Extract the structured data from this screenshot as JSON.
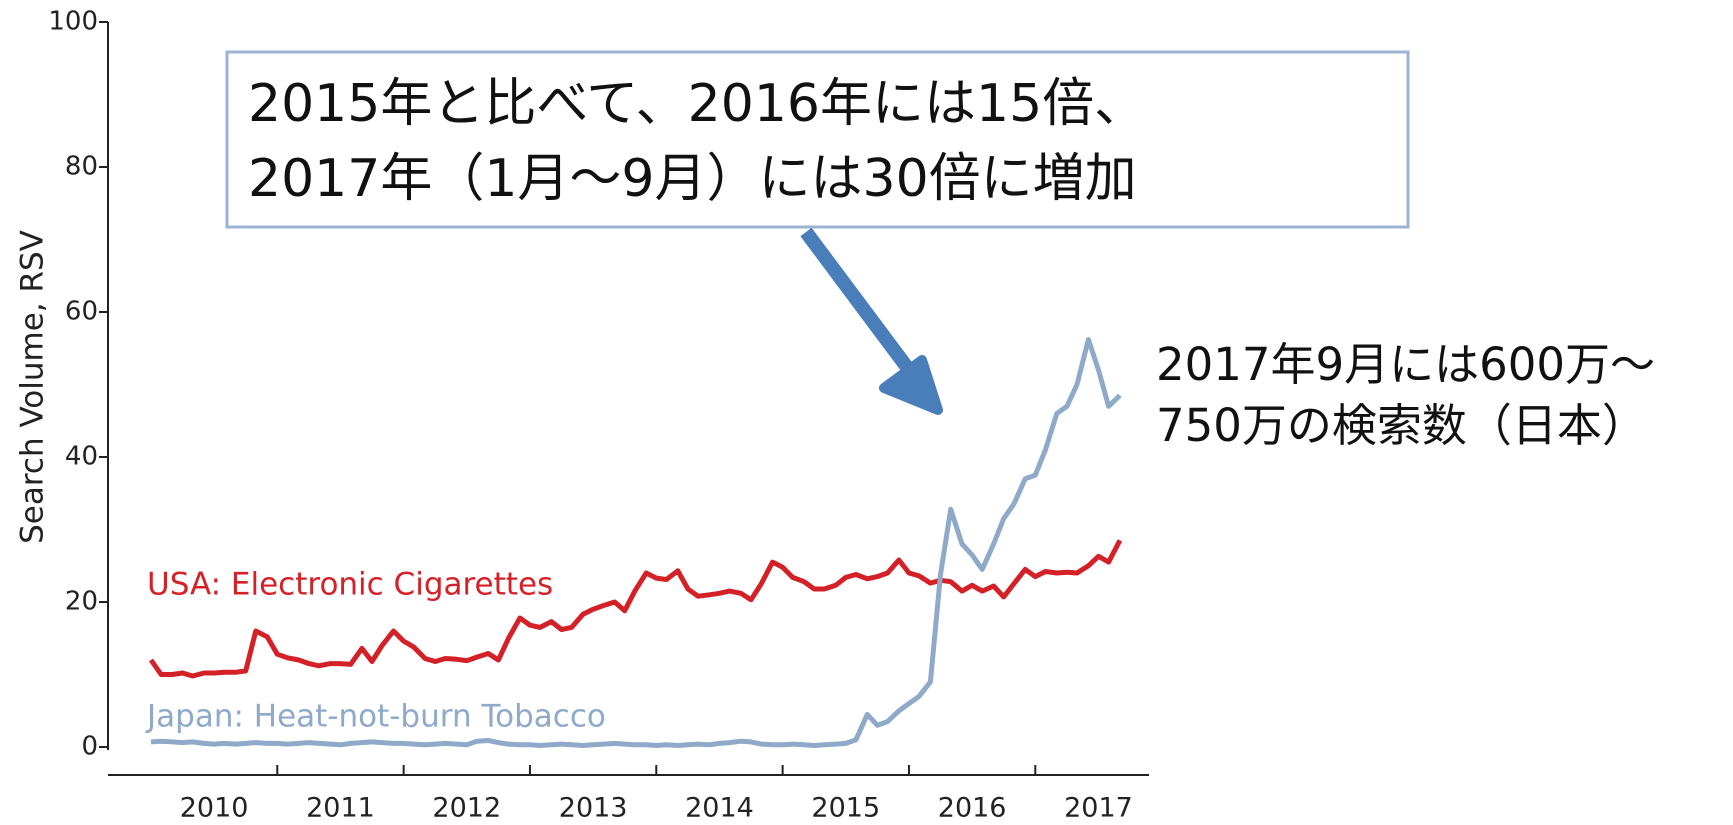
{
  "chart_data": {
    "type": "line",
    "ylabel": "Search Volume, RSV",
    "ylim": [
      0,
      100
    ],
    "yticks": [
      0,
      20,
      40,
      60,
      80,
      100
    ],
    "xlim": [
      2009.66,
      2017.9
    ],
    "xticks": [
      2011,
      2012,
      2013,
      2014,
      2015,
      2016,
      2017
    ],
    "categories": [
      "2010",
      "2011",
      "2012",
      "2013",
      "2014",
      "2015",
      "2016",
      "2017"
    ],
    "x": [
      2010,
      2010.08,
      2010.17,
      2010.25,
      2010.33,
      2010.42,
      2010.5,
      2010.58,
      2010.67,
      2010.75,
      2010.83,
      2010.92,
      2011,
      2011.08,
      2011.17,
      2011.25,
      2011.33,
      2011.42,
      2011.5,
      2011.58,
      2011.67,
      2011.75,
      2011.83,
      2011.92,
      2012,
      2012.08,
      2012.17,
      2012.25,
      2012.33,
      2012.42,
      2012.5,
      2012.58,
      2012.67,
      2012.75,
      2012.83,
      2012.92,
      2013,
      2013.08,
      2013.17,
      2013.25,
      2013.33,
      2013.42,
      2013.5,
      2013.58,
      2013.67,
      2013.75,
      2013.83,
      2013.92,
      2014,
      2014.08,
      2014.17,
      2014.25,
      2014.33,
      2014.42,
      2014.5,
      2014.58,
      2014.67,
      2014.75,
      2014.83,
      2014.92,
      2015,
      2015.08,
      2015.17,
      2015.25,
      2015.33,
      2015.42,
      2015.5,
      2015.58,
      2015.67,
      2015.75,
      2015.83,
      2015.92,
      2016,
      2016.08,
      2016.17,
      2016.25,
      2016.33,
      2016.42,
      2016.5,
      2016.58,
      2016.67,
      2016.75,
      2016.83,
      2016.92,
      2017,
      2017.08,
      2017.17,
      2017.25,
      2017.33,
      2017.42,
      2017.5,
      2017.58,
      2017.67
    ],
    "series": [
      {
        "name": "USA: Electronic Cigarettes",
        "color": "#d42027",
        "values": [
          12,
          10,
          10,
          10.2,
          9.8,
          10.2,
          10.2,
          10.3,
          10.3,
          10.5,
          16,
          15.2,
          12.8,
          12.3,
          12,
          11.5,
          11.2,
          11.5,
          11.5,
          11.4,
          13.6,
          11.8,
          14,
          16,
          14.6,
          13.8,
          12.2,
          11.8,
          12.2,
          12.1,
          11.9,
          12.4,
          12.9,
          12,
          15,
          17.8,
          16.8,
          16.5,
          17.3,
          16.2,
          16.5,
          18.3,
          19,
          19.5,
          20,
          18.8,
          21.5,
          24,
          23.3,
          23.1,
          24.3,
          21.8,
          20.8,
          21,
          21.2,
          21.5,
          21.2,
          20.3,
          22.5,
          25.5,
          24.8,
          23.4,
          22.8,
          21.8,
          21.8,
          22.3,
          23.4,
          23.8,
          23.2,
          23.5,
          24,
          25.8,
          24,
          23.6,
          22.6,
          23,
          22.8,
          21.5,
          22.3,
          21.5,
          22.2,
          20.7,
          22.5,
          24.5,
          23.5,
          24.2,
          24,
          24.1,
          24,
          25,
          26.3,
          25.5,
          28.5
        ]
      },
      {
        "name": "Japan: Heat-not-burn Tobacco",
        "color": "#8fa9c9",
        "values": [
          0.7,
          0.8,
          0.7,
          0.6,
          0.7,
          0.5,
          0.4,
          0.5,
          0.4,
          0.5,
          0.6,
          0.5,
          0.5,
          0.4,
          0.5,
          0.6,
          0.5,
          0.4,
          0.3,
          0.5,
          0.6,
          0.7,
          0.6,
          0.5,
          0.5,
          0.4,
          0.3,
          0.4,
          0.5,
          0.4,
          0.3,
          0.8,
          0.9,
          0.6,
          0.4,
          0.3,
          0.3,
          0.2,
          0.3,
          0.4,
          0.3,
          0.2,
          0.3,
          0.4,
          0.5,
          0.4,
          0.3,
          0.3,
          0.2,
          0.3,
          0.2,
          0.3,
          0.4,
          0.3,
          0.5,
          0.6,
          0.8,
          0.7,
          0.4,
          0.3,
          0.3,
          0.4,
          0.3,
          0.2,
          0.3,
          0.4,
          0.5,
          1.0,
          4.5,
          3.0,
          3.5,
          5.0,
          6,
          7,
          9,
          23.8,
          32.8,
          28,
          26.5,
          24.5,
          28,
          31.5,
          33.5,
          37,
          37.5,
          41,
          46,
          47,
          50,
          56.2,
          52,
          47,
          48.5
        ]
      }
    ],
    "box_text": [
      "2015年と比べて、2016年には15倍、",
      "2017年（1月～9月）には30倍に増加"
    ],
    "note_text": [
      "2017年9月には600万～",
      "750万の検索数（日本）"
    ]
  }
}
